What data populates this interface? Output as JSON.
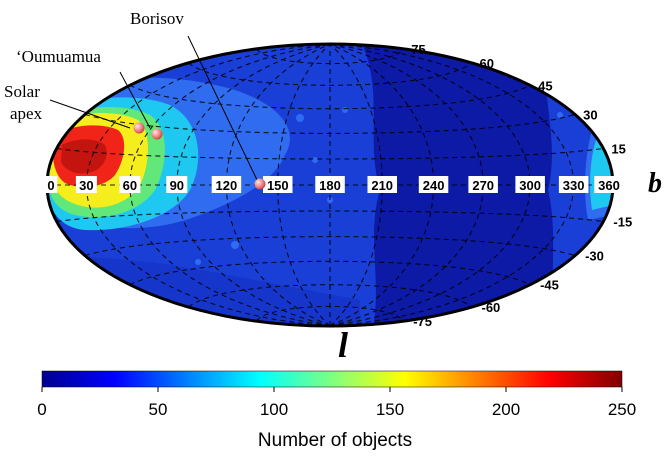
{
  "chart_data": {
    "type": "heatmap",
    "projection": "hammer-aitoff",
    "xlabel": "l",
    "ylabel": "b",
    "x_ticks": [
      "0",
      "30",
      "60",
      "90",
      "120",
      "150",
      "180",
      "210",
      "240",
      "270",
      "300",
      "330",
      "360"
    ],
    "y_ticks": [
      "75",
      "60",
      "45",
      "30",
      "15",
      "-15",
      "-30",
      "-45",
      "-60",
      "-75"
    ],
    "x_range": [
      0,
      360
    ],
    "y_range": [
      -90,
      90
    ],
    "grid": true,
    "hotspot_center": {
      "l": 30,
      "b": 25
    },
    "density_blobs": [
      {
        "l": 30,
        "b": 25,
        "peak": 240,
        "level": "dark-red"
      },
      {
        "l": 35,
        "b": 20,
        "peak": 180,
        "level": "yellow"
      },
      {
        "l": 40,
        "b": 15,
        "peak": 120,
        "level": "cyan"
      },
      {
        "l": 350,
        "b": 15,
        "peak": 120,
        "level": "cyan"
      }
    ],
    "markers": [
      {
        "label": "Solar\napex",
        "l": 55,
        "b": 32
      },
      {
        "label": "‘Oumuamua",
        "l": 65,
        "b": 28
      },
      {
        "label": "Borisov",
        "l": 132,
        "b": 0
      }
    ],
    "colorbar": {
      "label": "Number of objects",
      "min": 0,
      "max": 250,
      "ticks": [
        "0",
        "50",
        "100",
        "150",
        "200",
        "250"
      ],
      "colormap": "jet"
    }
  },
  "labels": {
    "x_axis": "l",
    "y_axis": "b",
    "solar_apex_line1": "Solar",
    "solar_apex_line2": "apex",
    "oumuamua": "‘Oumuamua",
    "borisov": "Borisov",
    "colorbar_label": "Number of objects"
  },
  "colors": {
    "background_field": "#1a3fd6",
    "deep_field": "#0a1a9e",
    "marker": "#f08a8a"
  }
}
